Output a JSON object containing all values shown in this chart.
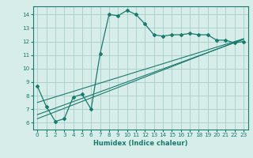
{
  "title": "",
  "xlabel": "Humidex (Indice chaleur)",
  "ylabel": "",
  "bg_color": "#d6edea",
  "line_color": "#1a7a6e",
  "grid_color": "#a8ccc8",
  "x_ticks": [
    0,
    1,
    2,
    3,
    4,
    5,
    6,
    7,
    8,
    9,
    10,
    11,
    12,
    13,
    14,
    15,
    16,
    17,
    18,
    19,
    20,
    21,
    22,
    23
  ],
  "y_ticks": [
    6,
    7,
    8,
    9,
    10,
    11,
    12,
    13,
    14
  ],
  "xlim": [
    -0.5,
    23.5
  ],
  "ylim": [
    5.5,
    14.6
  ],
  "series1_x": [
    0,
    1,
    2,
    3,
    4,
    5,
    6,
    7,
    8,
    9,
    10,
    11,
    12,
    13,
    14,
    15,
    16,
    17,
    18,
    19,
    20,
    21,
    22,
    23
  ],
  "series1_y": [
    8.7,
    7.2,
    6.1,
    6.3,
    7.9,
    8.1,
    7.0,
    11.1,
    14.0,
    13.9,
    14.3,
    14.0,
    13.3,
    12.5,
    12.4,
    12.5,
    12.5,
    12.6,
    12.5,
    12.5,
    12.1,
    12.1,
    11.9,
    12.0
  ],
  "series2_x": [
    0,
    23
  ],
  "series2_y": [
    6.3,
    12.2
  ],
  "series3_x": [
    0,
    23
  ],
  "series3_y": [
    6.6,
    12.15
  ],
  "series4_x": [
    0,
    23
  ],
  "series4_y": [
    7.5,
    12.2
  ]
}
